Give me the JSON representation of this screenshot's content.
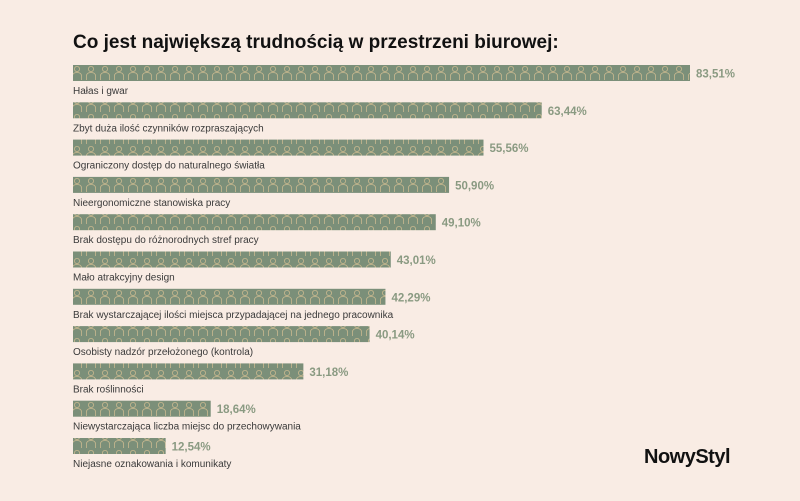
{
  "chart_data": {
    "type": "bar",
    "orientation": "horizontal",
    "title": "Co jest największą trudnością w przestrzeni biurowej:",
    "categories": [
      "Hałas i gwar",
      "Zbyt duża ilość czynników rozpraszających",
      "Ograniczony dostęp do naturalnego światła",
      "Nieergonomiczne stanowiska pracy",
      "Brak dostępu do różnorodnych stref pracy",
      "Mało atrakcyjny design",
      "Brak wystarczającej ilości miejsca przypadającej na jednego pracownika",
      "Osobisty nadzór przełożonego (kontrola)",
      "Brak roślinności",
      "Niewystarczająca liczba miejsc do przechowywania",
      "Niejasne oznakowania i komunikaty"
    ],
    "values": [
      83.51,
      63.44,
      55.56,
      50.9,
      49.1,
      43.01,
      42.29,
      40.14,
      31.18,
      18.64,
      12.54
    ],
    "value_labels": [
      "83,51%",
      "63,44%",
      "55,56%",
      "50,90%",
      "49,10%",
      "43,01%",
      "42,29%",
      "40,14%",
      "31,18%",
      "18,64%",
      "12,54%"
    ],
    "unit": "%",
    "xlim": [
      0,
      100
    ],
    "grid": false,
    "bar_color": "#7b8f79",
    "pattern_color": "#c9b98f",
    "label_value_color": "#8a9a82"
  },
  "brand": {
    "logo": "NowyStyl"
  }
}
